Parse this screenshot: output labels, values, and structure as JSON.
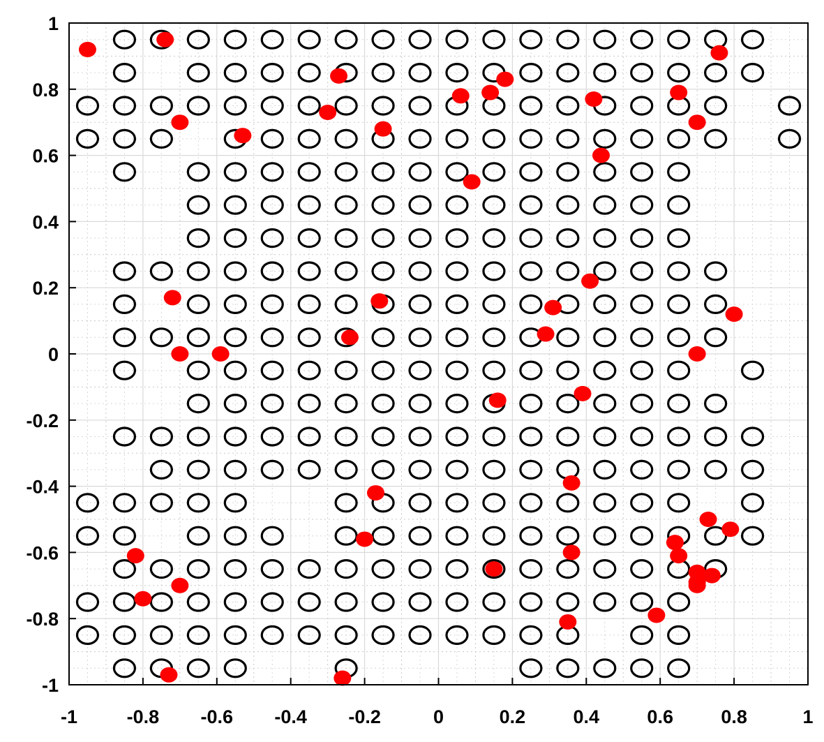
{
  "chart_data": {
    "type": "scatter",
    "title": "",
    "xlabel": "",
    "ylabel": "",
    "xlim": [
      -1,
      1
    ],
    "ylim": [
      -1,
      1
    ],
    "grid": "major solid, minor dotted",
    "xticks": [
      "-1",
      "-0.8",
      "-0.6",
      "-0.4",
      "-0.2",
      "0",
      "0.2",
      "0.4",
      "0.6",
      "0.8",
      "1"
    ],
    "yticks": [
      "1",
      "0.8",
      "0.6",
      "0.4",
      "0.2",
      "0",
      "-0.2",
      "-0.4",
      "-0.6",
      "-0.8",
      "-1"
    ],
    "series": [
      {
        "marker": "open-circle",
        "color": "#000000",
        "rows": [
          {
            "y": 0.95,
            "x": [
              -0.85,
              -0.75,
              -0.65,
              -0.55,
              -0.45,
              -0.35,
              -0.25,
              -0.15,
              -0.05,
              0.05,
              0.15,
              0.25,
              0.35,
              0.45,
              0.55,
              0.65,
              0.75,
              0.85
            ]
          },
          {
            "y": 0.85,
            "x": [
              -0.85,
              -0.65,
              -0.55,
              -0.45,
              -0.35,
              -0.25,
              -0.15,
              -0.05,
              0.05,
              0.15,
              0.25,
              0.35,
              0.45,
              0.55,
              0.65,
              0.75,
              0.85
            ]
          },
          {
            "y": 0.75,
            "x": [
              -0.95,
              -0.85,
              -0.75,
              -0.65,
              -0.55,
              -0.45,
              -0.35,
              -0.25,
              -0.15,
              -0.05,
              0.05,
              0.15,
              0.25,
              0.35,
              0.45,
              0.55,
              0.65,
              0.75,
              0.95
            ]
          },
          {
            "y": 0.65,
            "x": [
              -0.95,
              -0.85,
              -0.75,
              -0.55,
              -0.45,
              -0.35,
              -0.25,
              -0.15,
              -0.05,
              0.05,
              0.15,
              0.25,
              0.35,
              0.45,
              0.55,
              0.65,
              0.75,
              0.95
            ]
          },
          {
            "y": 0.55,
            "x": [
              -0.85,
              -0.65,
              -0.55,
              -0.45,
              -0.35,
              -0.25,
              -0.15,
              -0.05,
              0.05,
              0.15,
              0.25,
              0.35,
              0.45,
              0.55,
              0.65
            ]
          },
          {
            "y": 0.45,
            "x": [
              -0.65,
              -0.55,
              -0.45,
              -0.35,
              -0.25,
              -0.15,
              -0.05,
              0.05,
              0.15,
              0.25,
              0.35,
              0.45,
              0.55,
              0.65
            ]
          },
          {
            "y": 0.35,
            "x": [
              -0.65,
              -0.55,
              -0.45,
              -0.35,
              -0.25,
              -0.15,
              -0.05,
              0.05,
              0.15,
              0.25,
              0.35,
              0.45,
              0.55,
              0.65
            ]
          },
          {
            "y": 0.25,
            "x": [
              -0.85,
              -0.75,
              -0.65,
              -0.55,
              -0.45,
              -0.35,
              -0.25,
              -0.15,
              -0.05,
              0.05,
              0.15,
              0.25,
              0.35,
              0.45,
              0.55,
              0.65,
              0.75
            ]
          },
          {
            "y": 0.15,
            "x": [
              -0.85,
              -0.65,
              -0.55,
              -0.45,
              -0.35,
              -0.25,
              -0.15,
              -0.05,
              0.05,
              0.15,
              0.25,
              0.35,
              0.45,
              0.55,
              0.65,
              0.75
            ]
          },
          {
            "y": 0.05,
            "x": [
              -0.85,
              -0.75,
              -0.65,
              -0.55,
              -0.45,
              -0.35,
              -0.25,
              -0.15,
              -0.05,
              0.05,
              0.15,
              0.25,
              0.35,
              0.45,
              0.55,
              0.65,
              0.75
            ]
          },
          {
            "y": -0.05,
            "x": [
              -0.85,
              -0.65,
              -0.55,
              -0.45,
              -0.35,
              -0.25,
              -0.15,
              -0.05,
              0.05,
              0.15,
              0.25,
              0.35,
              0.45,
              0.55,
              0.65,
              0.85
            ]
          },
          {
            "y": -0.15,
            "x": [
              -0.65,
              -0.55,
              -0.45,
              -0.35,
              -0.25,
              -0.15,
              -0.05,
              0.05,
              0.15,
              0.25,
              0.35,
              0.45,
              0.55,
              0.65,
              0.75
            ]
          },
          {
            "y": -0.25,
            "x": [
              -0.85,
              -0.75,
              -0.65,
              -0.55,
              -0.45,
              -0.35,
              -0.25,
              -0.15,
              -0.05,
              0.05,
              0.15,
              0.25,
              0.35,
              0.45,
              0.55,
              0.65,
              0.75,
              0.85
            ]
          },
          {
            "y": -0.35,
            "x": [
              -0.75,
              -0.65,
              -0.55,
              -0.45,
              -0.35,
              -0.25,
              -0.15,
              -0.05,
              0.05,
              0.15,
              0.25,
              0.35,
              0.45,
              0.55,
              0.65,
              0.75,
              0.85
            ]
          },
          {
            "y": -0.45,
            "x": [
              -0.95,
              -0.85,
              -0.75,
              -0.65,
              -0.55,
              -0.25,
              -0.15,
              -0.05,
              0.05,
              0.15,
              0.25,
              0.35,
              0.45,
              0.55,
              0.65,
              0.85
            ]
          },
          {
            "y": -0.55,
            "x": [
              -0.95,
              -0.85,
              -0.65,
              -0.55,
              -0.45,
              -0.25,
              -0.15,
              -0.05,
              0.05,
              0.15,
              0.25,
              0.35,
              0.45,
              0.55,
              0.65,
              0.75,
              0.85
            ]
          },
          {
            "y": -0.65,
            "x": [
              -0.85,
              -0.75,
              -0.65,
              -0.55,
              -0.45,
              -0.35,
              -0.25,
              -0.15,
              -0.05,
              0.05,
              0.15,
              0.25,
              0.35,
              0.45,
              0.55,
              0.65,
              0.75
            ]
          },
          {
            "y": -0.75,
            "x": [
              -0.95,
              -0.85,
              -0.75,
              -0.65,
              -0.55,
              -0.45,
              -0.35,
              -0.25,
              -0.15,
              -0.05,
              0.05,
              0.15,
              0.25,
              0.35,
              0.45,
              0.55,
              0.65
            ]
          },
          {
            "y": -0.85,
            "x": [
              -0.95,
              -0.85,
              -0.75,
              -0.65,
              -0.55,
              -0.45,
              -0.35,
              -0.25,
              -0.15,
              -0.05,
              0.05,
              0.15,
              0.25,
              0.35,
              0.55,
              0.65
            ]
          },
          {
            "y": -0.95,
            "x": [
              -0.85,
              -0.75,
              -0.65,
              -0.55,
              -0.25,
              0.25,
              0.35,
              0.45,
              0.55,
              0.65
            ]
          }
        ]
      },
      {
        "marker": "filled-circle",
        "color": "#ff0000",
        "points": [
          [
            -0.95,
            0.92
          ],
          [
            -0.74,
            0.95
          ],
          [
            -0.27,
            0.84
          ],
          [
            0.06,
            0.78
          ],
          [
            0.14,
            0.79
          ],
          [
            0.18,
            0.83
          ],
          [
            0.42,
            0.77
          ],
          [
            0.65,
            0.79
          ],
          [
            0.76,
            0.91
          ],
          [
            -0.3,
            0.73
          ],
          [
            -0.7,
            0.7
          ],
          [
            -0.53,
            0.66
          ],
          [
            -0.15,
            0.68
          ],
          [
            0.7,
            0.7
          ],
          [
            0.44,
            0.6
          ],
          [
            0.09,
            0.52
          ],
          [
            0.41,
            0.22
          ],
          [
            -0.72,
            0.17
          ],
          [
            -0.16,
            0.16
          ],
          [
            0.31,
            0.14
          ],
          [
            0.8,
            0.12
          ],
          [
            -0.24,
            0.05
          ],
          [
            0.29,
            0.06
          ],
          [
            -0.7,
            0.0
          ],
          [
            -0.59,
            0.0
          ],
          [
            0.7,
            0.0
          ],
          [
            0.39,
            -0.12
          ],
          [
            0.16,
            -0.14
          ],
          [
            0.36,
            -0.39
          ],
          [
            -0.17,
            -0.42
          ],
          [
            0.73,
            -0.5
          ],
          [
            0.79,
            -0.53
          ],
          [
            -0.2,
            -0.56
          ],
          [
            0.64,
            -0.57
          ],
          [
            0.65,
            -0.61
          ],
          [
            -0.82,
            -0.61
          ],
          [
            0.36,
            -0.6
          ],
          [
            0.15,
            -0.65
          ],
          [
            0.7,
            -0.66
          ],
          [
            0.74,
            -0.67
          ],
          [
            0.7,
            -0.69
          ],
          [
            -0.7,
            -0.7
          ],
          [
            0.7,
            -0.7
          ],
          [
            -0.8,
            -0.74
          ],
          [
            0.59,
            -0.79
          ],
          [
            0.35,
            -0.81
          ],
          [
            -0.73,
            -0.97
          ],
          [
            -0.26,
            -0.98
          ]
        ]
      }
    ]
  }
}
